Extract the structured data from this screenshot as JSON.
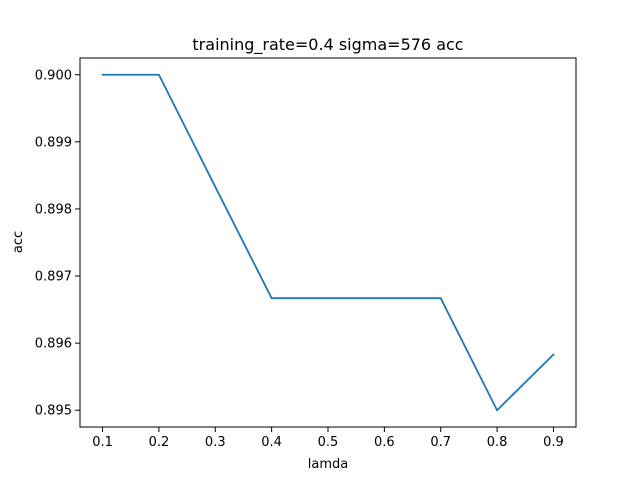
{
  "chart_data": {
    "type": "line",
    "title": "training_rate=0.4 sigma=576 acc",
    "xlabel": "lamda",
    "ylabel": "acc",
    "xlim": [
      0.06,
      0.94
    ],
    "ylim": [
      0.89475,
      0.90025
    ],
    "xticks": [
      0.1,
      0.2,
      0.3,
      0.4,
      0.5,
      0.6,
      0.7,
      0.8,
      0.9
    ],
    "xtick_labels": [
      "0.1",
      "0.2",
      "0.3",
      "0.4",
      "0.5",
      "0.6",
      "0.7",
      "0.8",
      "0.9"
    ],
    "yticks": [
      0.895,
      0.896,
      0.897,
      0.898,
      0.899,
      0.9
    ],
    "ytick_labels": [
      "0.895",
      "0.896",
      "0.897",
      "0.898",
      "0.899",
      "0.900"
    ],
    "grid": false,
    "series": [
      {
        "color": "#1f77b4",
        "x": [
          0.1,
          0.2,
          0.3,
          0.4,
          0.5,
          0.6,
          0.7,
          0.8,
          0.9
        ],
        "y": [
          0.9,
          0.9,
          0.89833,
          0.89667,
          0.89667,
          0.89667,
          0.89667,
          0.895,
          0.89583
        ]
      }
    ]
  }
}
